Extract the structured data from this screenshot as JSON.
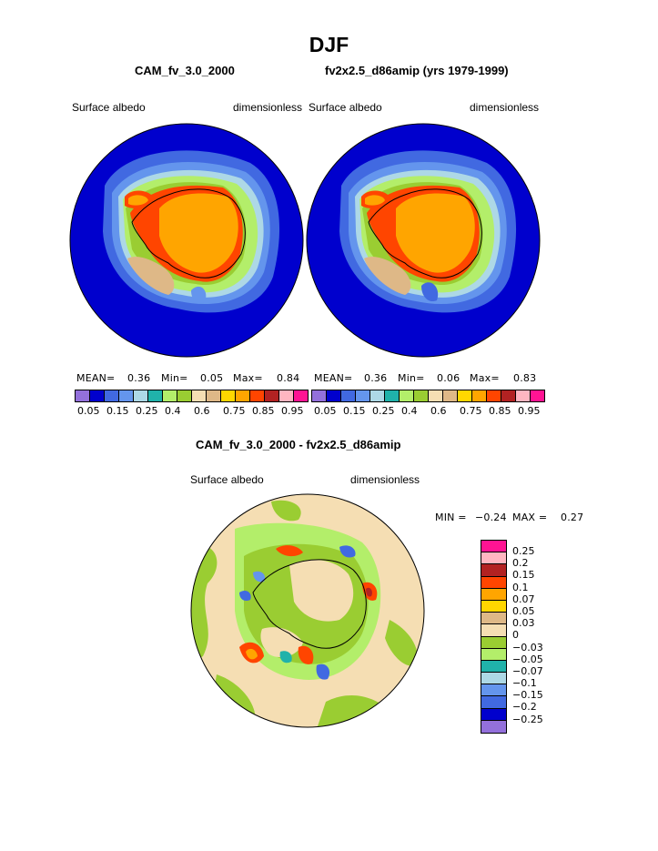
{
  "figure": {
    "title": "DJF",
    "panel_left": {
      "case": "CAM_fv_3.0_2000",
      "variable": "Surface albedo",
      "units": "dimensionless",
      "stats": {
        "mean_label": "MEAN=",
        "mean": "0.36",
        "min_label": "Min=",
        "min": "0.05",
        "max_label": "Max=",
        "max": "0.84"
      }
    },
    "panel_right": {
      "case": "fv2x2.5_d86amip (yrs 1979-1999)",
      "variable": "Surface albedo",
      "units": "dimensionless",
      "stats": {
        "mean_label": "MEAN=",
        "mean": "0.36",
        "min_label": "Min=",
        "min": "0.06",
        "max_label": "Max=",
        "max": "0.83"
      }
    },
    "panel_diff": {
      "case": "CAM_fv_3.0_2000 - fv2x2.5_d86amip",
      "variable": "Surface albedo",
      "units": "dimensionless",
      "stats": {
        "min_label": "MIN =",
        "min": "−0.24",
        "max_label": "MAX =",
        "max": "0.27"
      }
    },
    "colorbar_abs": {
      "colors": [
        "#9370db",
        "#0000cd",
        "#4169e1",
        "#6495ed",
        "#add8e6",
        "#20b2aa",
        "#b3ee6a",
        "#9acd32",
        "#f5deb3",
        "#deb887",
        "#ffd700",
        "#ffa500",
        "#ff4500",
        "#b22222",
        "#ffb6c1",
        "#ff1493"
      ],
      "tick_labels": [
        "0.05",
        "0.15",
        "0.25",
        "0.4",
        "0.6",
        "0.75",
        "0.85",
        "0.95"
      ]
    },
    "colorbar_diff": {
      "colors": [
        "#ff1493",
        "#ffb6c1",
        "#b22222",
        "#ff4500",
        "#ffa500",
        "#ffd700",
        "#deb887",
        "#f5deb3",
        "#9acd32",
        "#b3ee6a",
        "#20b2aa",
        "#add8e6",
        "#6495ed",
        "#4169e1",
        "#0000cd",
        "#9370db"
      ],
      "tick_labels": [
        "0.25",
        "0.2",
        "0.15",
        "0.1",
        "0.07",
        "0.05",
        "0.03",
        "0",
        "−0.03",
        "−0.05",
        "−0.07",
        "−0.1",
        "−0.15",
        "−0.2",
        "−0.25"
      ]
    }
  }
}
